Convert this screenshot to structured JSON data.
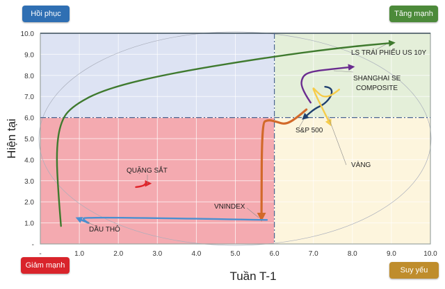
{
  "quadrant_buttons": {
    "top_left": "Hồi phục",
    "top_right": "Tăng mạnh",
    "bottom_left": "Giảm mạnh",
    "bottom_right": "Suy yếu"
  },
  "chart_data": {
    "type": "line",
    "title": "",
    "xlabel": "Tuần T-1",
    "ylabel": "Hiện tại",
    "xlim": [
      0,
      10
    ],
    "ylim": [
      0,
      10
    ],
    "x_ticks": [
      "-",
      "1.0",
      "2.0",
      "3.0",
      "4.0",
      "5.0",
      "6.0",
      "7.0",
      "8.0",
      "9.0",
      "10.0"
    ],
    "y_ticks": [
      "-",
      "1.0",
      "2.0",
      "3.0",
      "4.0",
      "5.0",
      "6.0",
      "7.0",
      "8.0",
      "9.0",
      "10.0"
    ],
    "grid": true,
    "quadrant_divider": {
      "x": 6.0,
      "y": 6.0
    },
    "quadrant_colors": {
      "top_left": "#dde3f3",
      "top_right": "#e4efd9",
      "bottom_left": "#f4aab0",
      "bottom_right": "#fdf5dd"
    },
    "series": [
      {
        "name": "LS TRÁI PHIẾU US 10Y",
        "color": "#3f7a2e",
        "points": [
          [
            0.53,
            0.85
          ],
          [
            0.46,
            2.41
          ],
          [
            0.41,
            4.36
          ],
          [
            0.5,
            5.67
          ],
          [
            0.76,
            6.48
          ],
          [
            1.65,
            7.36
          ],
          [
            3.43,
            8.14
          ],
          [
            6.09,
            8.93
          ],
          [
            7.87,
            9.35
          ],
          [
            9.02,
            9.54
          ]
        ]
      },
      {
        "name": "SHANGHAI SE COMPOSITE",
        "color": "#6a2c8f",
        "points": [
          [
            6.93,
            6.71
          ],
          [
            6.68,
            7.39
          ],
          [
            6.71,
            7.95
          ],
          [
            6.93,
            8.18
          ],
          [
            7.51,
            8.31
          ],
          [
            7.98,
            8.4
          ]
        ]
      },
      {
        "name": "S&P 500",
        "color": "#1f3f6e",
        "points": [
          [
            7.3,
            7.46
          ],
          [
            7.46,
            7.43
          ],
          [
            7.48,
            7.07
          ],
          [
            7.29,
            6.64
          ],
          [
            7.03,
            6.42
          ],
          [
            6.77,
            6.0
          ]
        ]
      },
      {
        "name": "VÀNG",
        "color": "#f6cc4a",
        "points": [
          [
            7.66,
            7.33
          ],
          [
            7.47,
            7.04
          ],
          [
            7.25,
            6.97
          ],
          [
            7.1,
            7.2
          ],
          [
            6.94,
            7.52
          ],
          [
            7.42,
            5.73
          ]
        ]
      },
      {
        "name": "VNINDEX",
        "color": "#d2692a",
        "points": [
          [
            6.82,
            6.38
          ],
          [
            6.54,
            5.93
          ],
          [
            6.27,
            5.67
          ],
          [
            6.06,
            5.8
          ],
          [
            5.83,
            5.9
          ],
          [
            5.68,
            5.73
          ],
          [
            5.67,
            1.27
          ]
        ]
      },
      {
        "name": "DẦU THÔ",
        "color": "#4a8fd0",
        "points": [
          [
            5.81,
            1.14
          ],
          [
            1.12,
            1.3
          ],
          [
            1.1,
            1.14
          ],
          [
            1.3,
            0.94
          ],
          [
            0.98,
            1.2
          ]
        ]
      },
      {
        "name": "QUẶNG SẮT",
        "color": "#e0242a",
        "points": [
          [
            2.45,
            2.7
          ],
          [
            2.63,
            2.74
          ],
          [
            2.7,
            2.87
          ],
          [
            2.77,
            2.87
          ]
        ]
      }
    ]
  }
}
